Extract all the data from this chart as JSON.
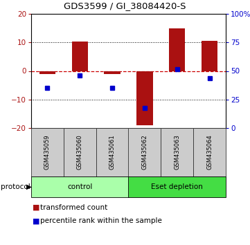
{
  "title": "GDS3599 / GI_38084420-S",
  "samples": [
    "GSM435059",
    "GSM435060",
    "GSM435061",
    "GSM435062",
    "GSM435063",
    "GSM435064"
  ],
  "transformed_count": [
    -1.0,
    10.2,
    -1.2,
    -19.0,
    15.0,
    10.5
  ],
  "percentile_rank_mapped": [
    -6.0,
    -1.5,
    -6.0,
    -13.0,
    0.5,
    -2.5
  ],
  "bar_color": "#aa1111",
  "dot_color": "#0000cc",
  "red_dashed_color": "#cc0000",
  "ylim_left": [
    -20,
    20
  ],
  "ylim_right": [
    0,
    100
  ],
  "left_yticks": [
    -20,
    -10,
    0,
    10,
    20
  ],
  "right_yticks": [
    0,
    25,
    50,
    75,
    100
  ],
  "protocols": [
    {
      "label": "control",
      "color": "#aaffaa",
      "indices": [
        0,
        1,
        2
      ]
    },
    {
      "label": "Eset depletion",
      "color": "#44dd44",
      "indices": [
        3,
        4,
        5
      ]
    }
  ],
  "protocol_label": "protocol",
  "legend_items": [
    {
      "label": "transformed count",
      "color": "#aa1111"
    },
    {
      "label": "percentile rank within the sample",
      "color": "#0000cc"
    }
  ],
  "bar_width": 0.5,
  "sample_box_color": "#cccccc",
  "sample_box_edge": "#333333"
}
